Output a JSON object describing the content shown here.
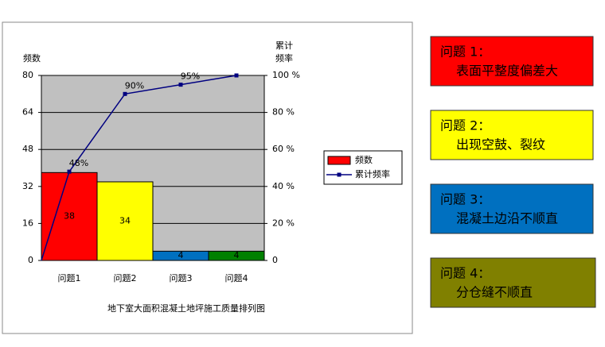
{
  "chart_data": {
    "type": "bar",
    "title": "地下室大面积混凝土地坪施工质量排列图",
    "ylabel": "频数",
    "y2label": [
      "累计",
      "频率"
    ],
    "categories": [
      "问题1",
      "问题2",
      "问题3",
      "问题4"
    ],
    "series": [
      {
        "name": "频数",
        "type": "bar",
        "color": "#ff0000",
        "colors": [
          "#ff0000",
          "#ffff00",
          "#0070c0",
          "#008000"
        ],
        "values": [
          38,
          34,
          4,
          4
        ]
      },
      {
        "name": "累计频率",
        "type": "line",
        "axis": "y2",
        "color": "#000080",
        "values": [
          48,
          90,
          95,
          100
        ],
        "value_labels": [
          "48%",
          "90%",
          "95%",
          null
        ]
      }
    ],
    "ylim": [
      0,
      80
    ],
    "yticks": [
      0,
      16,
      32,
      48,
      64,
      80
    ],
    "y2lim": [
      0,
      100
    ],
    "y2ticks": [
      0,
      {
        "value": 20,
        "label": "20 %"
      },
      {
        "value": 40,
        "label": "40 %"
      },
      {
        "value": 60,
        "label": "60 %"
      },
      {
        "value": 80,
        "label": "80 %"
      },
      {
        "value": 100,
        "label": "100 %"
      }
    ],
    "grid": true,
    "plot_background": "#c0c0c0",
    "legend": "right"
  },
  "notes": [
    {
      "heading": "问题 1：",
      "text": "表面平整度偏差大",
      "color": "#ff0000"
    },
    {
      "heading": "问题 2：",
      "text": "出现空鼓、裂纹",
      "color": "#ffff00"
    },
    {
      "heading": "问题 3：",
      "text": "混凝土边沿不顺直",
      "color": "#0070c0"
    },
    {
      "heading": "问题 4：",
      "text": "分仓缝不顺直",
      "color": "#808000"
    }
  ]
}
